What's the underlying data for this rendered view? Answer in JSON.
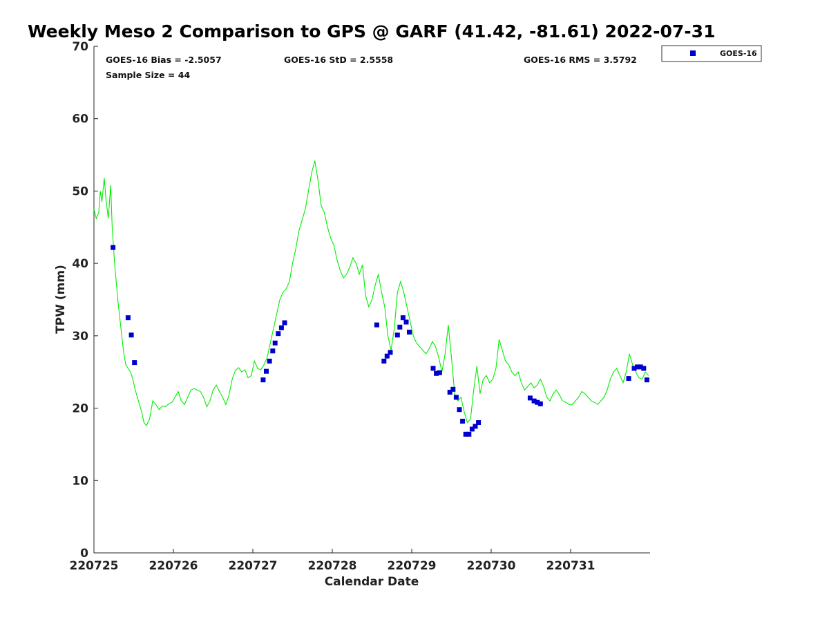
{
  "chart_data": {
    "type": "line+scatter",
    "title": "Weekly Meso 2 Comparison to GPS @ GARF (41.42, -81.61) 2022-07-31",
    "xlabel": "Calendar Date",
    "ylabel": "TPW (mm)",
    "xlim": [
      220725,
      220732
    ],
    "ylim": [
      0,
      70
    ],
    "x_tick_labels": [
      "220725",
      "220726",
      "220727",
      "220728",
      "220729",
      "220730",
      "220731"
    ],
    "y_ticks": [
      0,
      10,
      20,
      30,
      40,
      50,
      60,
      70
    ],
    "grid": false,
    "legend": {
      "position": "top-right, outside plot"
    },
    "stats": {
      "bias": "GOES-16 Bias = -2.5057",
      "std": "GOES-16 StD = 2.5558",
      "rms": "GOES-16 RMS = 3.5792",
      "sample": "Sample Size = 44"
    },
    "series": [
      {
        "kind": "line",
        "color": "#00ee00",
        "points": [
          [
            0.0,
            47.5
          ],
          [
            0.03,
            46.2
          ],
          [
            0.06,
            47.0
          ],
          [
            0.08,
            50.0
          ],
          [
            0.1,
            48.5
          ],
          [
            0.13,
            51.8
          ],
          [
            0.15,
            49.0
          ],
          [
            0.18,
            46.2
          ],
          [
            0.21,
            50.8
          ],
          [
            0.23,
            45.0
          ],
          [
            0.26,
            40.0
          ],
          [
            0.3,
            35.0
          ],
          [
            0.34,
            31.0
          ],
          [
            0.37,
            28.0
          ],
          [
            0.4,
            26.0
          ],
          [
            0.43,
            25.5
          ],
          [
            0.46,
            25.0
          ],
          [
            0.49,
            24.0
          ],
          [
            0.52,
            22.5
          ],
          [
            0.56,
            21.0
          ],
          [
            0.6,
            19.5
          ],
          [
            0.63,
            18.0
          ],
          [
            0.66,
            17.6
          ],
          [
            0.7,
            18.5
          ],
          [
            0.74,
            21.0
          ],
          [
            0.78,
            20.5
          ],
          [
            0.82,
            19.8
          ],
          [
            0.86,
            20.3
          ],
          [
            0.9,
            20.2
          ],
          [
            0.94,
            20.6
          ],
          [
            0.98,
            20.8
          ],
          [
            1.02,
            21.5
          ],
          [
            1.06,
            22.3
          ],
          [
            1.1,
            21.0
          ],
          [
            1.14,
            20.5
          ],
          [
            1.18,
            21.5
          ],
          [
            1.22,
            22.5
          ],
          [
            1.26,
            22.7
          ],
          [
            1.3,
            22.5
          ],
          [
            1.34,
            22.3
          ],
          [
            1.38,
            21.5
          ],
          [
            1.42,
            20.2
          ],
          [
            1.46,
            21.0
          ],
          [
            1.5,
            22.5
          ],
          [
            1.54,
            23.2
          ],
          [
            1.58,
            22.3
          ],
          [
            1.62,
            21.5
          ],
          [
            1.66,
            20.5
          ],
          [
            1.7,
            21.8
          ],
          [
            1.74,
            24.0
          ],
          [
            1.78,
            25.2
          ],
          [
            1.82,
            25.6
          ],
          [
            1.86,
            25.0
          ],
          [
            1.9,
            25.3
          ],
          [
            1.94,
            24.2
          ],
          [
            1.98,
            24.5
          ],
          [
            2.02,
            26.5
          ],
          [
            2.06,
            25.5
          ],
          [
            2.1,
            25.3
          ],
          [
            2.14,
            26.0
          ],
          [
            2.18,
            27.0
          ],
          [
            2.22,
            29.0
          ],
          [
            2.26,
            31.0
          ],
          [
            2.3,
            33.0
          ],
          [
            2.34,
            35.0
          ],
          [
            2.38,
            36.0
          ],
          [
            2.42,
            36.5
          ],
          [
            2.46,
            37.5
          ],
          [
            2.5,
            40.0
          ],
          [
            2.54,
            42.0
          ],
          [
            2.58,
            44.5
          ],
          [
            2.62,
            46.0
          ],
          [
            2.66,
            47.5
          ],
          [
            2.7,
            50.0
          ],
          [
            2.74,
            52.5
          ],
          [
            2.78,
            54.2
          ],
          [
            2.82,
            51.5
          ],
          [
            2.86,
            48.0
          ],
          [
            2.9,
            47.0
          ],
          [
            2.94,
            45.0
          ],
          [
            2.98,
            43.5
          ],
          [
            3.02,
            42.5
          ],
          [
            3.06,
            40.5
          ],
          [
            3.1,
            39.0
          ],
          [
            3.14,
            38.0
          ],
          [
            3.18,
            38.5
          ],
          [
            3.22,
            39.5
          ],
          [
            3.26,
            40.8
          ],
          [
            3.3,
            40.0
          ],
          [
            3.34,
            38.5
          ],
          [
            3.38,
            39.8
          ],
          [
            3.42,
            35.5
          ],
          [
            3.46,
            34.0
          ],
          [
            3.5,
            35.0
          ],
          [
            3.54,
            37.0
          ],
          [
            3.58,
            38.5
          ],
          [
            3.62,
            36.0
          ],
          [
            3.66,
            34.0
          ],
          [
            3.7,
            30.0
          ],
          [
            3.74,
            28.0
          ],
          [
            3.78,
            31.0
          ],
          [
            3.82,
            36.0
          ],
          [
            3.86,
            37.5
          ],
          [
            3.9,
            36.0
          ],
          [
            3.94,
            34.0
          ],
          [
            3.98,
            32.0
          ],
          [
            4.02,
            30.0
          ],
          [
            4.06,
            29.0
          ],
          [
            4.1,
            28.5
          ],
          [
            4.14,
            28.0
          ],
          [
            4.18,
            27.5
          ],
          [
            4.22,
            28.2
          ],
          [
            4.26,
            29.2
          ],
          [
            4.3,
            28.5
          ],
          [
            4.34,
            27.0
          ],
          [
            4.38,
            25.0
          ],
          [
            4.42,
            27.5
          ],
          [
            4.46,
            31.5
          ],
          [
            4.5,
            27.0
          ],
          [
            4.54,
            22.0
          ],
          [
            4.58,
            21.0
          ],
          [
            4.62,
            21.5
          ],
          [
            4.66,
            19.5
          ],
          [
            4.7,
            18.0
          ],
          [
            4.74,
            18.5
          ],
          [
            4.78,
            22.5
          ],
          [
            4.82,
            25.8
          ],
          [
            4.86,
            22.0
          ],
          [
            4.9,
            24.0
          ],
          [
            4.94,
            24.5
          ],
          [
            4.98,
            23.5
          ],
          [
            5.02,
            24.0
          ],
          [
            5.06,
            25.5
          ],
          [
            5.1,
            29.5
          ],
          [
            5.14,
            28.0
          ],
          [
            5.18,
            26.5
          ],
          [
            5.22,
            26.0
          ],
          [
            5.26,
            25.0
          ],
          [
            5.3,
            24.5
          ],
          [
            5.34,
            25.0
          ],
          [
            5.38,
            23.5
          ],
          [
            5.42,
            22.5
          ],
          [
            5.46,
            23.0
          ],
          [
            5.5,
            23.5
          ],
          [
            5.54,
            22.8
          ],
          [
            5.58,
            23.2
          ],
          [
            5.62,
            24.0
          ],
          [
            5.66,
            23.0
          ],
          [
            5.7,
            21.5
          ],
          [
            5.74,
            21.0
          ],
          [
            5.78,
            22.0
          ],
          [
            5.82,
            22.5
          ],
          [
            5.86,
            21.8
          ],
          [
            5.9,
            21.0
          ],
          [
            5.94,
            20.8
          ],
          [
            5.98,
            20.5
          ],
          [
            6.02,
            20.5
          ],
          [
            6.06,
            21.0
          ],
          [
            6.1,
            21.5
          ],
          [
            6.14,
            22.3
          ],
          [
            6.18,
            22.0
          ],
          [
            6.22,
            21.5
          ],
          [
            6.26,
            21.0
          ],
          [
            6.3,
            20.8
          ],
          [
            6.34,
            20.5
          ],
          [
            6.38,
            21.0
          ],
          [
            6.42,
            21.5
          ],
          [
            6.46,
            22.5
          ],
          [
            6.5,
            24.0
          ],
          [
            6.54,
            25.0
          ],
          [
            6.58,
            25.5
          ],
          [
            6.62,
            24.5
          ],
          [
            6.66,
            23.5
          ],
          [
            6.7,
            25.0
          ],
          [
            6.74,
            27.5
          ],
          [
            6.78,
            26.0
          ],
          [
            6.82,
            25.0
          ],
          [
            6.86,
            24.2
          ],
          [
            6.9,
            24.0
          ],
          [
            6.94,
            25.0
          ],
          [
            6.98,
            24.5
          ]
        ]
      },
      {
        "kind": "scatter",
        "name": "GOES-16",
        "color": "#0000cc",
        "points": [
          [
            0.24,
            42.2
          ],
          [
            0.43,
            32.5
          ],
          [
            0.47,
            30.1
          ],
          [
            0.51,
            26.3
          ],
          [
            2.13,
            23.9
          ],
          [
            2.17,
            25.1
          ],
          [
            2.21,
            26.5
          ],
          [
            2.25,
            27.9
          ],
          [
            2.28,
            29.0
          ],
          [
            2.32,
            30.3
          ],
          [
            2.36,
            31.1
          ],
          [
            2.4,
            31.8
          ],
          [
            3.56,
            31.5
          ],
          [
            3.65,
            26.5
          ],
          [
            3.69,
            27.2
          ],
          [
            3.73,
            27.7
          ],
          [
            3.82,
            30.1
          ],
          [
            3.85,
            31.2
          ],
          [
            3.89,
            32.5
          ],
          [
            3.93,
            31.9
          ],
          [
            3.97,
            30.5
          ],
          [
            4.27,
            25.5
          ],
          [
            4.31,
            24.8
          ],
          [
            4.35,
            24.9
          ],
          [
            4.48,
            22.2
          ],
          [
            4.52,
            22.6
          ],
          [
            4.56,
            21.5
          ],
          [
            4.6,
            19.8
          ],
          [
            4.64,
            18.2
          ],
          [
            4.68,
            16.4
          ],
          [
            4.72,
            16.4
          ],
          [
            4.76,
            17.1
          ],
          [
            4.8,
            17.5
          ],
          [
            4.84,
            18.0
          ],
          [
            5.49,
            21.4
          ],
          [
            5.54,
            21.0
          ],
          [
            5.58,
            20.8
          ],
          [
            5.62,
            20.6
          ],
          [
            6.73,
            24.1
          ],
          [
            6.8,
            25.5
          ],
          [
            6.84,
            25.7
          ],
          [
            6.88,
            25.7
          ],
          [
            6.92,
            25.5
          ],
          [
            6.96,
            23.9
          ]
        ]
      }
    ]
  }
}
